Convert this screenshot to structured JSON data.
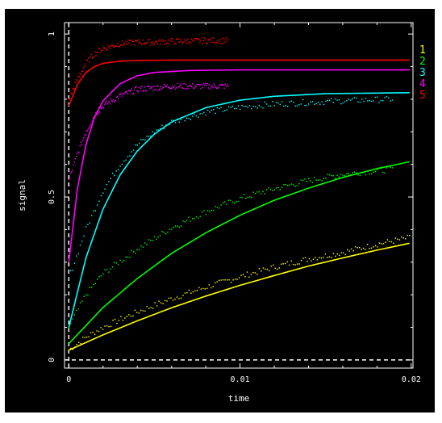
{
  "chart_data": {
    "type": "scatter",
    "title": "",
    "xlabel": "time",
    "ylabel": "signal",
    "xlim": [
      -0.00025,
      0.0201
    ],
    "ylim": [
      -0.025,
      1.035
    ],
    "x_ticks": [
      {
        "value": 0,
        "label": "0"
      },
      {
        "value": 0.01,
        "label": "0.01"
      },
      {
        "value": 0.02,
        "label": "0.02"
      }
    ],
    "y_ticks": [
      {
        "value": 0,
        "label": "0"
      },
      {
        "value": 0.5,
        "label": "0.5"
      },
      {
        "value": 1,
        "label": "1"
      }
    ],
    "grid": false,
    "legend_position": "right",
    "background_color": "#000000",
    "frame_color": "#ffffff",
    "reference_lines": {
      "x": 0,
      "y": 0,
      "style": "dashed"
    },
    "series": [
      {
        "name": "1",
        "color": "#ffff00",
        "fit_x_max": 0.0199,
        "data_x_max": 0.0199,
        "data": [
          [
            0.0,
            0.03
          ],
          [
            0.001,
            0.07
          ],
          [
            0.002,
            0.1
          ],
          [
            0.004,
            0.147
          ],
          [
            0.006,
            0.188
          ],
          [
            0.008,
            0.223
          ],
          [
            0.01,
            0.255
          ],
          [
            0.012,
            0.285
          ],
          [
            0.014,
            0.31
          ],
          [
            0.016,
            0.33
          ],
          [
            0.018,
            0.355
          ],
          [
            0.0199,
            0.375
          ]
        ],
        "fit": [
          [
            0.0,
            0.03
          ],
          [
            0.002,
            0.077
          ],
          [
            0.004,
            0.12
          ],
          [
            0.006,
            0.16
          ],
          [
            0.008,
            0.196
          ],
          [
            0.01,
            0.229
          ],
          [
            0.012,
            0.259
          ],
          [
            0.014,
            0.288
          ],
          [
            0.016,
            0.313
          ],
          [
            0.018,
            0.337
          ],
          [
            0.0199,
            0.358
          ]
        ]
      },
      {
        "name": "2",
        "color": "#00ff00",
        "fit_x_max": 0.0199,
        "data_x_max": 0.0189,
        "data": [
          [
            0.0,
            0.1
          ],
          [
            0.001,
            0.2
          ],
          [
            0.002,
            0.265
          ],
          [
            0.004,
            0.34
          ],
          [
            0.006,
            0.405
          ],
          [
            0.008,
            0.455
          ],
          [
            0.01,
            0.495
          ],
          [
            0.012,
            0.525
          ],
          [
            0.014,
            0.55
          ],
          [
            0.016,
            0.57
          ],
          [
            0.018,
            0.58
          ],
          [
            0.0189,
            0.585
          ]
        ],
        "fit": [
          [
            0.0,
            0.05
          ],
          [
            0.002,
            0.161
          ],
          [
            0.004,
            0.25
          ],
          [
            0.006,
            0.327
          ],
          [
            0.008,
            0.39
          ],
          [
            0.01,
            0.444
          ],
          [
            0.012,
            0.49
          ],
          [
            0.014,
            0.527
          ],
          [
            0.016,
            0.56
          ],
          [
            0.018,
            0.587
          ],
          [
            0.0199,
            0.608
          ]
        ]
      },
      {
        "name": "3",
        "color": "#00ffff",
        "fit_x_max": 0.0199,
        "data_x_max": 0.0189,
        "data": [
          [
            0.0,
            0.25
          ],
          [
            0.001,
            0.4
          ],
          [
            0.002,
            0.52
          ],
          [
            0.003,
            0.6
          ],
          [
            0.004,
            0.66
          ],
          [
            0.005,
            0.7
          ],
          [
            0.006,
            0.73
          ],
          [
            0.008,
            0.76
          ],
          [
            0.01,
            0.775
          ],
          [
            0.012,
            0.785
          ],
          [
            0.014,
            0.79
          ],
          [
            0.016,
            0.795
          ],
          [
            0.0189,
            0.8
          ]
        ],
        "fit": [
          [
            0.0,
            0.1
          ],
          [
            0.001,
            0.313
          ],
          [
            0.002,
            0.463
          ],
          [
            0.003,
            0.568
          ],
          [
            0.004,
            0.641
          ],
          [
            0.005,
            0.693
          ],
          [
            0.006,
            0.73
          ],
          [
            0.008,
            0.774
          ],
          [
            0.01,
            0.797
          ],
          [
            0.012,
            0.809
          ],
          [
            0.015,
            0.817
          ],
          [
            0.0199,
            0.82
          ]
        ]
      },
      {
        "name": "4",
        "color": "#ff00ff",
        "fit_x_max": 0.0199,
        "data_x_max": 0.0093,
        "data": [
          [
            0.0,
            0.55
          ],
          [
            0.0005,
            0.63
          ],
          [
            0.001,
            0.7
          ],
          [
            0.0015,
            0.75
          ],
          [
            0.002,
            0.78
          ],
          [
            0.003,
            0.81
          ],
          [
            0.004,
            0.83
          ],
          [
            0.005,
            0.835
          ],
          [
            0.006,
            0.84
          ],
          [
            0.007,
            0.84
          ],
          [
            0.008,
            0.84
          ],
          [
            0.0093,
            0.84
          ]
        ],
        "fit": [
          [
            0.0,
            0.3
          ],
          [
            0.0005,
            0.525
          ],
          [
            0.001,
            0.66
          ],
          [
            0.0015,
            0.745
          ],
          [
            0.002,
            0.795
          ],
          [
            0.003,
            0.848
          ],
          [
            0.004,
            0.872
          ],
          [
            0.005,
            0.882
          ],
          [
            0.007,
            0.888
          ],
          [
            0.01,
            0.89
          ],
          [
            0.0199,
            0.89
          ]
        ]
      },
      {
        "name": "5",
        "color": "#ff0000",
        "fit_x_max": 0.0199,
        "data_x_max": 0.0093,
        "data": [
          [
            0.0,
            0.8
          ],
          [
            0.0005,
            0.86
          ],
          [
            0.001,
            0.91
          ],
          [
            0.0015,
            0.94
          ],
          [
            0.002,
            0.955
          ],
          [
            0.003,
            0.97
          ],
          [
            0.004,
            0.975
          ],
          [
            0.005,
            0.975
          ],
          [
            0.006,
            0.978
          ],
          [
            0.007,
            0.978
          ],
          [
            0.008,
            0.98
          ],
          [
            0.0093,
            0.98
          ]
        ],
        "fit": [
          [
            0.0,
            0.78
          ],
          [
            0.0005,
            0.845
          ],
          [
            0.001,
            0.882
          ],
          [
            0.0015,
            0.9
          ],
          [
            0.002,
            0.91
          ],
          [
            0.003,
            0.917
          ],
          [
            0.004,
            0.919
          ],
          [
            0.006,
            0.92
          ],
          [
            0.01,
            0.92
          ],
          [
            0.0199,
            0.92
          ]
        ]
      }
    ]
  }
}
